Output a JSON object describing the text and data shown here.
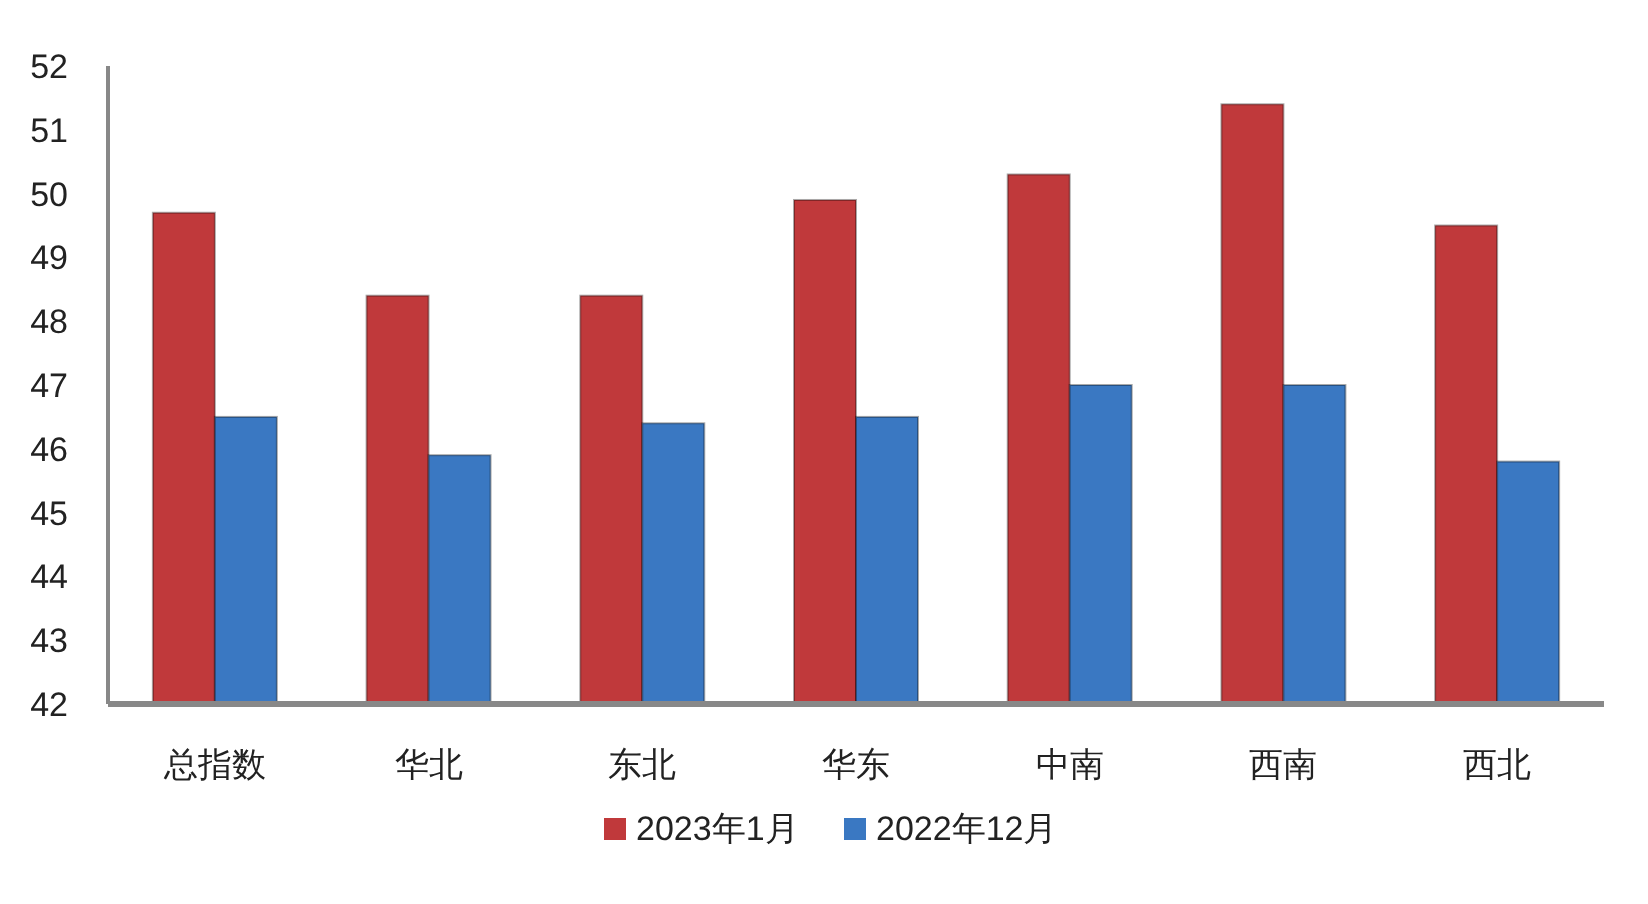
{
  "chart_data": {
    "type": "bar",
    "categories": [
      "总指数",
      "华北",
      "东北",
      "华东",
      "中南",
      "西南",
      "西北"
    ],
    "series": [
      {
        "name": "2023年1月",
        "color": "#c0393b",
        "values": [
          49.7,
          48.4,
          48.4,
          49.9,
          50.3,
          51.4,
          49.5
        ]
      },
      {
        "name": "2022年12月",
        "color": "#3a78c2",
        "values": [
          46.5,
          45.9,
          46.4,
          46.5,
          47.0,
          47.0,
          45.8
        ]
      }
    ],
    "ylim": [
      42,
      52
    ],
    "yticks": [
      42,
      43,
      44,
      45,
      46,
      47,
      48,
      49,
      50,
      51,
      52
    ],
    "grid": false,
    "legend": "bottom"
  }
}
